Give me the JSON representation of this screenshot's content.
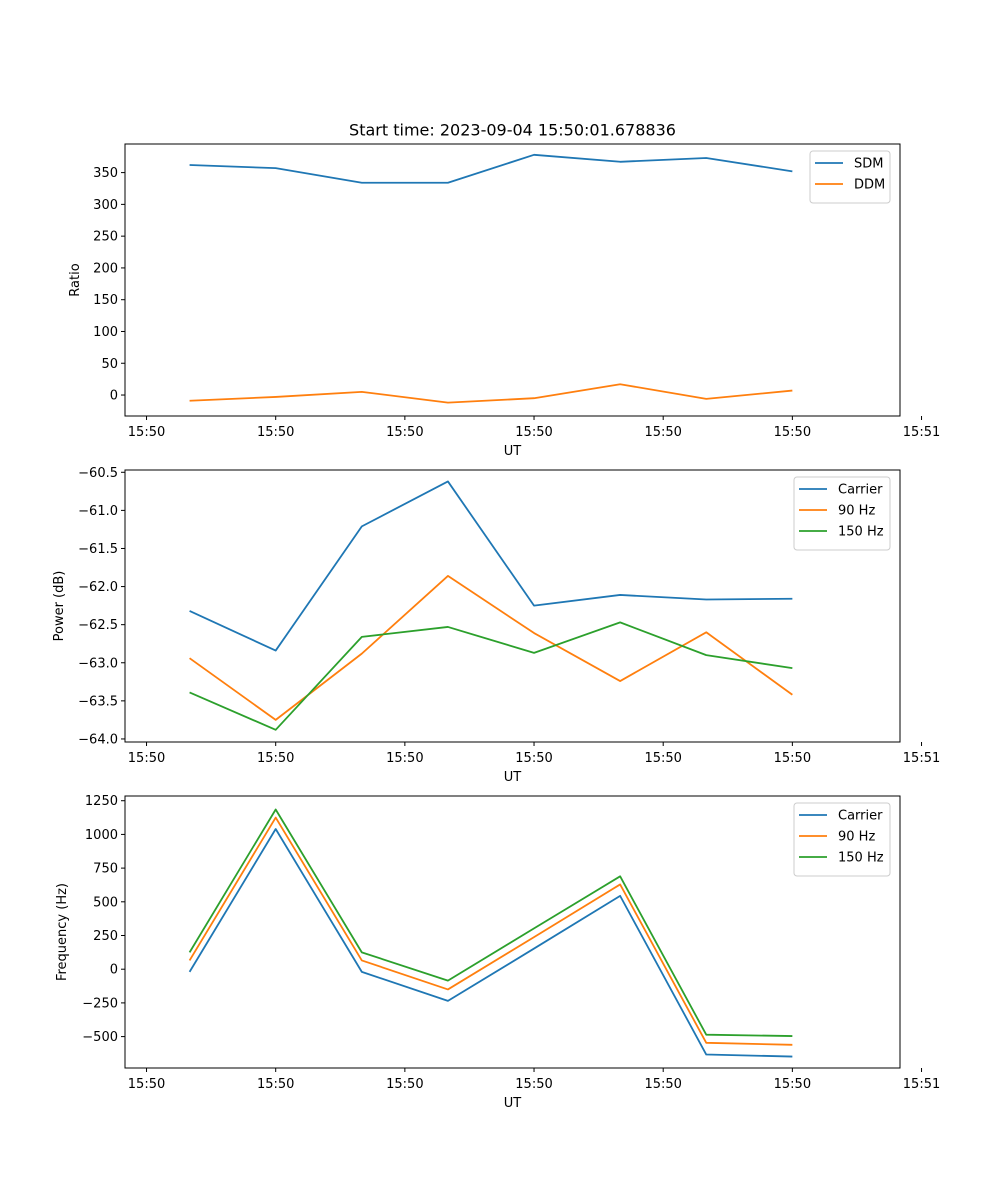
{
  "figure_title": "Start time: 2023-09-04 15:50:01.678836",
  "colors": {
    "blue": "#1f77b4",
    "orange": "#ff7f0e",
    "green": "#2ca02c"
  },
  "chart_data": [
    {
      "type": "line",
      "xlabel": "UT",
      "ylabel": "Ratio",
      "x": [
        1,
        2,
        3,
        4,
        5,
        6,
        7,
        8
      ],
      "xlim": [
        0.25,
        9.25
      ],
      "xticks": [
        0.5,
        2,
        3.5,
        5,
        6.5,
        8,
        9.5
      ],
      "xtick_labels": [
        "15:50",
        "15:50",
        "15:50",
        "15:50",
        "15:50",
        "15:50",
        "15:51"
      ],
      "ylim": [
        -33,
        395
      ],
      "yticks": [
        0,
        50,
        100,
        150,
        200,
        250,
        300,
        350
      ],
      "ytick_labels": [
        "0",
        "50",
        "100",
        "150",
        "200",
        "250",
        "300",
        "350"
      ],
      "legend_loc": "top-right",
      "series": [
        {
          "name": "SDM",
          "color": "blue",
          "values": [
            362,
            357,
            334,
            334,
            378,
            367,
            373,
            352
          ]
        },
        {
          "name": "DDM",
          "color": "orange",
          "values": [
            -9,
            -3,
            5,
            -12,
            -5,
            17,
            -6,
            7
          ]
        }
      ]
    },
    {
      "type": "line",
      "xlabel": "UT",
      "ylabel": "Power (dB)",
      "x": [
        1,
        2,
        3,
        4,
        5,
        6,
        7,
        8
      ],
      "xlim": [
        0.25,
        9.25
      ],
      "xticks": [
        0.5,
        2,
        3.5,
        5,
        6.5,
        8,
        9.5
      ],
      "xtick_labels": [
        "15:50",
        "15:50",
        "15:50",
        "15:50",
        "15:50",
        "15:50",
        "15:51"
      ],
      "ylim": [
        -64.04,
        -60.47
      ],
      "yticks": [
        -64.0,
        -63.5,
        -63.0,
        -62.5,
        -62.0,
        -61.5,
        -61.0,
        -60.5
      ],
      "ytick_labels": [
        "−64.0",
        "−63.5",
        "−63.0",
        "−62.5",
        "−62.0",
        "−61.5",
        "−61.0",
        "−60.5"
      ],
      "legend_loc": "top-right",
      "series": [
        {
          "name": "Carrier",
          "color": "blue",
          "values": [
            -62.32,
            -62.84,
            -61.21,
            -60.62,
            -62.25,
            -62.11,
            -62.17,
            -62.16
          ]
        },
        {
          "name": "90 Hz",
          "color": "orange",
          "values": [
            -62.94,
            -63.75,
            -62.88,
            -61.86,
            -62.61,
            -63.24,
            -62.6,
            -63.42
          ]
        },
        {
          "name": "150 Hz",
          "color": "green",
          "values": [
            -63.39,
            -63.88,
            -62.66,
            -62.53,
            -62.87,
            -62.47,
            -62.9,
            -63.07
          ]
        }
      ]
    },
    {
      "type": "line",
      "xlabel": "UT",
      "ylabel": "Frequency (Hz)",
      "x": [
        1,
        2,
        3,
        4,
        5,
        6,
        7,
        8
      ],
      "xlim": [
        0.25,
        9.25
      ],
      "xticks": [
        0.5,
        2,
        3.5,
        5,
        6.5,
        8,
        9.5
      ],
      "xtick_labels": [
        "15:50",
        "15:50",
        "15:50",
        "15:50",
        "15:50",
        "15:50",
        "15:51"
      ],
      "ylim": [
        -733,
        1285
      ],
      "yticks": [
        -500,
        -250,
        0,
        250,
        500,
        750,
        1000,
        1250
      ],
      "ytick_labels": [
        "−500",
        "−250",
        "0",
        "250",
        "500",
        "750",
        "1000",
        "1250"
      ],
      "legend_loc": "top-right",
      "series": [
        {
          "name": "Carrier",
          "color": "blue",
          "values": [
            -20,
            1040,
            -20,
            -235,
            153,
            544,
            -633,
            -648
          ]
        },
        {
          "name": "90 Hz",
          "color": "orange",
          "values": [
            65,
            1125,
            65,
            -150,
            238,
            629,
            -546,
            -561
          ]
        },
        {
          "name": "150 Hz",
          "color": "green",
          "values": [
            125,
            1185,
            125,
            -85,
            303,
            689,
            -486,
            -496
          ]
        }
      ]
    }
  ]
}
